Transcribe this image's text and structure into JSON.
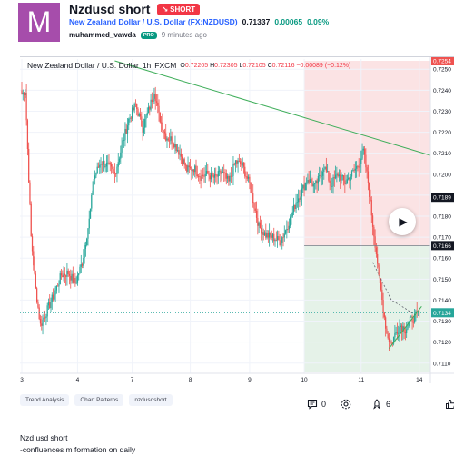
{
  "idea": {
    "avatar_letter": "M",
    "title": "Nzdusd short",
    "direction_badge": "SHORT",
    "symbol_link": "New Zealand Dollar / U.S. Dollar (FX:NZDUSD)",
    "price": "0.71337",
    "change": "0.00065",
    "change_pct": "0.09%",
    "author": "muhammed_vawda",
    "author_badge": "PRO",
    "posted": "9 minutes ago"
  },
  "chart": {
    "legend_name": "New Zealand Dollar / U.S. Dollar",
    "interval": "1h",
    "exchange": "FXCM",
    "ohlc": {
      "o": "0.72205",
      "h": "0.72305",
      "l": "0.72105",
      "c": "0.72116",
      "chg": "−0.00089 (−0.12%)"
    },
    "colors": {
      "up": "#26a69a",
      "down": "#ef5350",
      "stop_zone": "#fbe3e4",
      "target_zone": "#e5f2e8",
      "trendline": "#3fae5a"
    }
  },
  "chart_data": {
    "type": "candlestick",
    "x_tick_labels": [
      "3",
      "4",
      "7",
      "8",
      "9",
      "10",
      "11",
      "14"
    ],
    "y_tick_labels": [
      "0.7250",
      "0.7240",
      "0.7230",
      "0.7220",
      "0.7210",
      "0.7200",
      "0.7190",
      "0.7180",
      "0.7170",
      "0.7160",
      "0.7150",
      "0.7140",
      "0.7130",
      "0.7120",
      "0.7110"
    ],
    "ylim": [
      0.7106,
      0.7254
    ],
    "price_labels": [
      {
        "value": 0.7254,
        "text": "0.7254",
        "color": "#ef5350"
      },
      {
        "value": 0.7189,
        "text": "0.7189",
        "color": "#131722"
      },
      {
        "value": 0.7166,
        "text": "0.7166",
        "color": "#131722"
      },
      {
        "value": 0.7134,
        "text": "0.7134",
        "color": "#26a69a"
      }
    ],
    "position": {
      "entry": 0.7166,
      "stop": 0.7254,
      "target": 0.7106
    },
    "trendline": {
      "from_price": 0.7254,
      "to_price": 0.7209
    },
    "path_keypoints": [
      [
        0,
        0.7238
      ],
      [
        3,
        0.724
      ],
      [
        8,
        0.717
      ],
      [
        12,
        0.7145
      ],
      [
        16,
        0.7128
      ],
      [
        20,
        0.7133
      ],
      [
        28,
        0.7143
      ],
      [
        34,
        0.7152
      ],
      [
        40,
        0.7153
      ],
      [
        46,
        0.7148
      ],
      [
        52,
        0.7158
      ],
      [
        58,
        0.7178
      ],
      [
        62,
        0.7198
      ],
      [
        68,
        0.7206
      ],
      [
        74,
        0.7204
      ],
      [
        80,
        0.72
      ],
      [
        86,
        0.7213
      ],
      [
        92,
        0.7226
      ],
      [
        98,
        0.7233
      ],
      [
        104,
        0.7222
      ],
      [
        110,
        0.7232
      ],
      [
        114,
        0.724
      ],
      [
        118,
        0.7228
      ],
      [
        124,
        0.7218
      ],
      [
        130,
        0.7216
      ],
      [
        136,
        0.721
      ],
      [
        142,
        0.7202
      ],
      [
        148,
        0.7203
      ],
      [
        154,
        0.7199
      ],
      [
        160,
        0.72
      ],
      [
        166,
        0.7198
      ],
      [
        172,
        0.7201
      ],
      [
        178,
        0.7196
      ],
      [
        184,
        0.7206
      ],
      [
        190,
        0.7204
      ],
      [
        196,
        0.7195
      ],
      [
        200,
        0.7185
      ],
      [
        204,
        0.7175
      ],
      [
        210,
        0.7171
      ],
      [
        216,
        0.717
      ],
      [
        222,
        0.7168
      ],
      [
        226,
        0.7172
      ],
      [
        232,
        0.718
      ],
      [
        236,
        0.7187
      ],
      [
        240,
        0.7191
      ],
      [
        246,
        0.7198
      ],
      [
        252,
        0.7194
      ],
      [
        256,
        0.7198
      ],
      [
        260,
        0.7204
      ],
      [
        266,
        0.7195
      ],
      [
        272,
        0.72
      ],
      [
        278,
        0.7196
      ],
      [
        284,
        0.72
      ],
      [
        290,
        0.7205
      ],
      [
        294,
        0.7211
      ],
      [
        298,
        0.7196
      ],
      [
        302,
        0.7176
      ],
      [
        306,
        0.7158
      ],
      [
        310,
        0.714
      ],
      [
        314,
        0.7124
      ],
      [
        318,
        0.7119
      ],
      [
        322,
        0.7125
      ],
      [
        326,
        0.7128
      ],
      [
        330,
        0.7126
      ],
      [
        334,
        0.713
      ],
      [
        338,
        0.7132
      ],
      [
        342,
        0.7134
      ]
    ]
  },
  "tags": [
    "Trend Analysis",
    "Chart Patterns",
    "nzdusdshort"
  ],
  "actions": {
    "comments": "0",
    "boosts": "6"
  },
  "description": {
    "line1": "Nzd usd short",
    "line2": "-confluences m formation on daily"
  }
}
